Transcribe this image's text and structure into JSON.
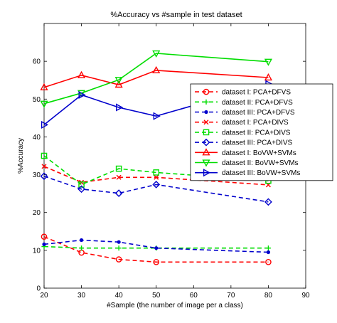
{
  "chart_data": {
    "type": "line",
    "title": "%Accuracy vs #sample in test dataset",
    "xlabel": "#Sample (the number of image per a class)",
    "ylabel": "%Accuracy",
    "xlim": [
      20,
      90
    ],
    "ylim": [
      0,
      70
    ],
    "x_ticks": [
      20,
      30,
      40,
      50,
      60,
      70,
      80,
      90
    ],
    "y_ticks": [
      0,
      10,
      20,
      30,
      40,
      50,
      60
    ],
    "grid": false,
    "legend_placement": "right",
    "x": [
      20,
      30,
      40,
      50,
      80
    ],
    "series": [
      {
        "name": "dataset I: PCA+DFVS",
        "color": "#ff0000",
        "dash": "dashed",
        "marker": "circle-open",
        "values": [
          13.6,
          9.4,
          7.6,
          6.9,
          6.9
        ]
      },
      {
        "name": "dataset II: PCA+DFVS",
        "color": "#00dd00",
        "dash": "dashed",
        "marker": "plus",
        "values": [
          11.0,
          10.6,
          10.6,
          10.6,
          10.6
        ]
      },
      {
        "name": "dataset III: PCA+DFVS",
        "color": "#0000cc",
        "dash": "dashed",
        "marker": "dot",
        "values": [
          11.6,
          12.7,
          12.2,
          10.6,
          9.5
        ]
      },
      {
        "name": "dataset I: PCA+DIVS",
        "color": "#ff0000",
        "dash": "dashed",
        "marker": "x",
        "values": [
          32.2,
          28.0,
          29.3,
          29.3,
          27.3
        ]
      },
      {
        "name": "dataset II: PCA+DIVS",
        "color": "#00dd00",
        "dash": "dashed",
        "marker": "square-open",
        "values": [
          35.0,
          27.4,
          31.6,
          30.6,
          28.4
        ]
      },
      {
        "name": "dataset III: PCA+DIVS",
        "color": "#0000cc",
        "dash": "dashed",
        "marker": "diamond-open",
        "values": [
          29.6,
          26.2,
          25.1,
          27.4,
          22.8
        ]
      },
      {
        "name": "dataset I: BoVW+SVMs",
        "color": "#ff0000",
        "dash": "solid",
        "marker": "triangle-up-open",
        "values": [
          53.1,
          56.3,
          53.8,
          57.6,
          55.7
        ]
      },
      {
        "name": "dataset II: BoVW+SVMs",
        "color": "#00dd00",
        "dash": "solid",
        "marker": "triangle-down-open",
        "values": [
          48.8,
          51.6,
          55.1,
          62.1,
          59.9
        ]
      },
      {
        "name": "dataset III: BoVW+SVMs",
        "color": "#0000cc",
        "dash": "solid",
        "marker": "triangle-right-open",
        "values": [
          43.2,
          51.1,
          47.8,
          45.5,
          54.0
        ]
      }
    ]
  }
}
